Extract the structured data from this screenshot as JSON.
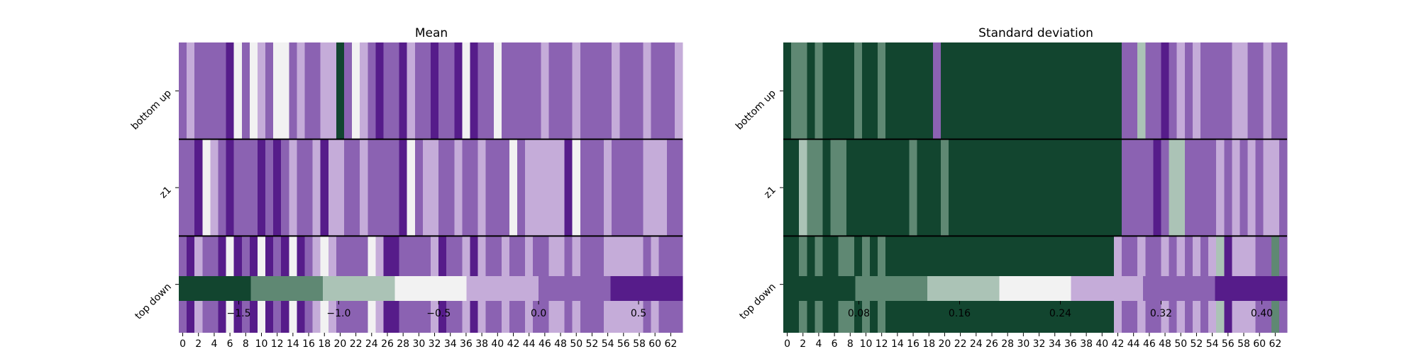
{
  "palette": [
    "#12452f",
    "#5f8873",
    "#abc3b6",
    "#f2f2f2",
    "#c5acd9",
    "#8b62b2",
    "#561c8a"
  ],
  "chart_data": [
    {
      "type": "heatmap",
      "title": "Mean",
      "rows": [
        "bottom up",
        "z1",
        "top down"
      ],
      "x_ticks": [
        "0",
        "2",
        "4",
        "6",
        "8",
        "10",
        "12",
        "14",
        "16",
        "18",
        "20",
        "22",
        "24",
        "26",
        "28",
        "30",
        "32",
        "34",
        "36",
        "38",
        "40",
        "42",
        "44",
        "46",
        "48",
        "50",
        "52",
        "54",
        "56",
        "58",
        "60",
        "62"
      ],
      "num_columns": 64,
      "color_levels": [
        -1.8,
        -1.45,
        -1.1,
        -0.73,
        -0.37,
        0.0,
        0.37,
        0.72
      ],
      "colorbar_ticks": [
        {
          "value": -1.5,
          "label": "−1.5"
        },
        {
          "value": -1.0,
          "label": "−1.0"
        },
        {
          "value": -0.5,
          "label": "−0.5"
        },
        {
          "value": 0.0,
          "label": "0.0"
        },
        {
          "value": 0.5,
          "label": "0.5"
        }
      ],
      "values": [
        [
          0.1,
          -0.2,
          0.2,
          0.2,
          0.2,
          0.2,
          0.6,
          -0.5,
          0.2,
          -0.5,
          -0.2,
          0.2,
          -0.5,
          -0.5,
          0.2,
          -0.2,
          0.2,
          0.2,
          -0.2,
          -0.2,
          -1.6,
          0.2,
          -0.5,
          -0.2,
          0.2,
          0.6,
          0.2,
          0.2,
          0.6,
          -0.2,
          0.2,
          0.2,
          0.6,
          0.2,
          0.2,
          0.6,
          -0.5,
          0.6,
          0.2,
          0.2,
          -0.5,
          0.2,
          0.2,
          0.2,
          0.2,
          0.2,
          -0.2,
          0.2,
          0.2,
          0.2,
          -0.2,
          0.2,
          0.2,
          0.2,
          0.2,
          -0.2,
          0.2,
          0.2,
          0.2,
          -0.2,
          0.2,
          0.2,
          0.2,
          -0.2
        ],
        [
          0.2,
          0.2,
          0.6,
          -0.5,
          -0.2,
          0.2,
          0.6,
          0.2,
          0.2,
          0.2,
          0.6,
          0.2,
          0.6,
          0.2,
          -0.2,
          0.2,
          0.2,
          -0.2,
          0.6,
          -0.2,
          -0.2,
          0.2,
          0.2,
          -0.2,
          0.2,
          0.2,
          0.2,
          0.2,
          0.6,
          -0.5,
          0.2,
          -0.2,
          -0.2,
          0.2,
          0.2,
          -0.2,
          0.2,
          0.2,
          -0.2,
          0.2,
          0.2,
          0.2,
          -0.5,
          0.2,
          -0.2,
          -0.2,
          -0.2,
          -0.2,
          -0.2,
          0.6,
          -0.5,
          0.2,
          0.2,
          0.2,
          -0.2,
          0.2,
          0.2,
          0.2,
          0.2,
          -0.2,
          -0.2,
          -0.2,
          0.2,
          0.2
        ],
        [
          0.2,
          0.6,
          -0.2,
          0.2,
          0.2,
          0.6,
          -0.5,
          0.6,
          0.2,
          0.6,
          -0.5,
          0.6,
          0.2,
          0.6,
          -0.5,
          0.6,
          0.2,
          -0.2,
          -0.5,
          -0.2,
          0.2,
          0.2,
          0.2,
          0.2,
          -0.5,
          -0.2,
          0.6,
          0.6,
          0.2,
          0.2,
          0.2,
          0.2,
          -0.2,
          0.6,
          0.2,
          0.2,
          -0.2,
          0.6,
          -0.2,
          0.2,
          0.2,
          -0.2,
          0.2,
          0.2,
          -0.2,
          0.2,
          0.2,
          -0.2,
          -0.2,
          0.2,
          -0.2,
          0.2,
          0.2,
          0.2,
          -0.2,
          -0.2,
          -0.2,
          -0.2,
          -0.2,
          0.2,
          -0.2,
          0.2,
          0.2,
          0.2
        ]
      ]
    },
    {
      "type": "heatmap",
      "title": "Standard deviation",
      "rows": [
        "bottom up",
        "z1",
        "top down"
      ],
      "x_ticks": [
        "0",
        "2",
        "4",
        "6",
        "8",
        "10",
        "12",
        "14",
        "16",
        "18",
        "20",
        "22",
        "24",
        "26",
        "28",
        "30",
        "32",
        "34",
        "36",
        "38",
        "40",
        "42",
        "44",
        "46",
        "48",
        "50",
        "52",
        "54",
        "56",
        "58",
        "60",
        "62"
      ],
      "num_columns": 64,
      "color_levels": [
        0.02,
        0.063,
        0.11,
        0.17,
        0.23,
        0.29,
        0.35,
        0.42
      ],
      "colorbar_ticks": [
        {
          "value": 0.08,
          "label": "0.08"
        },
        {
          "value": 0.16,
          "label": "0.16"
        },
        {
          "value": 0.24,
          "label": "0.24"
        },
        {
          "value": 0.32,
          "label": "0.32"
        },
        {
          "value": 0.4,
          "label": "0.40"
        }
      ],
      "values": [
        [
          0.03,
          0.08,
          0.08,
          0.03,
          0.08,
          0.03,
          0.03,
          0.03,
          0.03,
          0.08,
          0.03,
          0.03,
          0.08,
          0.03,
          0.03,
          0.03,
          0.03,
          0.03,
          0.03,
          0.3,
          0.03,
          0.03,
          0.03,
          0.03,
          0.03,
          0.03,
          0.03,
          0.03,
          0.03,
          0.03,
          0.03,
          0.03,
          0.03,
          0.03,
          0.03,
          0.03,
          0.03,
          0.03,
          0.03,
          0.03,
          0.03,
          0.03,
          0.03,
          0.3,
          0.3,
          0.15,
          0.3,
          0.3,
          0.4,
          0.3,
          0.26,
          0.3,
          0.26,
          0.3,
          0.3,
          0.3,
          0.3,
          0.26,
          0.26,
          0.3,
          0.3,
          0.26,
          0.3,
          0.3
        ],
        [
          0.03,
          0.03,
          0.15,
          0.08,
          0.08,
          0.03,
          0.08,
          0.08,
          0.03,
          0.03,
          0.03,
          0.03,
          0.03,
          0.03,
          0.03,
          0.03,
          0.08,
          0.03,
          0.03,
          0.03,
          0.08,
          0.03,
          0.03,
          0.03,
          0.03,
          0.03,
          0.03,
          0.03,
          0.03,
          0.03,
          0.03,
          0.03,
          0.03,
          0.03,
          0.03,
          0.03,
          0.03,
          0.03,
          0.03,
          0.03,
          0.03,
          0.03,
          0.03,
          0.3,
          0.3,
          0.3,
          0.3,
          0.4,
          0.3,
          0.15,
          0.15,
          0.3,
          0.3,
          0.3,
          0.3,
          0.26,
          0.3,
          0.26,
          0.3,
          0.26,
          0.3,
          0.26,
          0.26,
          0.3
        ],
        [
          0.03,
          0.03,
          0.08,
          0.03,
          0.08,
          0.03,
          0.03,
          0.08,
          0.08,
          0.03,
          0.08,
          0.03,
          0.08,
          0.03,
          0.03,
          0.03,
          0.03,
          0.03,
          0.03,
          0.03,
          0.03,
          0.03,
          0.03,
          0.03,
          0.03,
          0.03,
          0.03,
          0.03,
          0.03,
          0.03,
          0.03,
          0.03,
          0.03,
          0.03,
          0.03,
          0.03,
          0.03,
          0.03,
          0.03,
          0.03,
          0.03,
          0.03,
          0.26,
          0.3,
          0.3,
          0.26,
          0.3,
          0.3,
          0.26,
          0.3,
          0.26,
          0.3,
          0.26,
          0.3,
          0.26,
          0.15,
          0.4,
          0.26,
          0.26,
          0.26,
          0.3,
          0.3,
          0.08,
          0.3
        ]
      ]
    }
  ]
}
